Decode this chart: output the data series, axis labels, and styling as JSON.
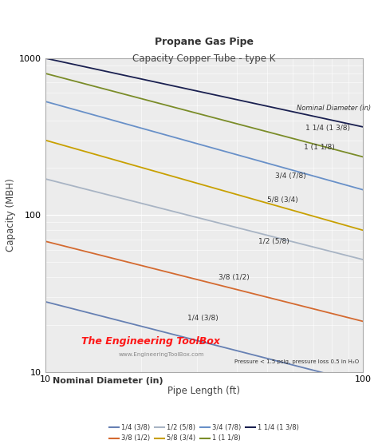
{
  "title": "Propane Gas Pipe",
  "subtitle": "Capacity Copper Tube - type K",
  "xlabel": "Pipe Length (ft)",
  "ylabel": "Capacity (MBH)",
  "xlabel2": "Nominal Diameter (in)",
  "xlim": [
    10,
    100
  ],
  "ylim": [
    10,
    1000
  ],
  "annotation": "Pressure < 1.5 psig, pressure loss 0.5 in H₂O",
  "watermark1": "The Engineering ToolBox",
  "watermark2": "www.EngineeringToolBox.com",
  "series": [
    {
      "label": "1/4 (3/8)",
      "color": "#6680b3",
      "x": [
        10,
        100
      ],
      "y": [
        28,
        8.5
      ]
    },
    {
      "label": "3/8 (1/2)",
      "color": "#d46a30",
      "x": [
        10,
        100
      ],
      "y": [
        68,
        21
      ]
    },
    {
      "label": "1/2 (5/8)",
      "color": "#a8b4c4",
      "x": [
        10,
        100
      ],
      "y": [
        170,
        52
      ]
    },
    {
      "label": "5/8 (3/4)",
      "color": "#c8a000",
      "x": [
        10,
        100
      ],
      "y": [
        300,
        80
      ]
    },
    {
      "label": "3/4 (7/8)",
      "color": "#6890c8",
      "x": [
        10,
        100
      ],
      "y": [
        530,
        145
      ]
    },
    {
      "label": "1 (1 1/8)",
      "color": "#7a8c28",
      "x": [
        10,
        100
      ],
      "y": [
        800,
        235
      ]
    },
    {
      "label": "1 1/4 (1 3/8)",
      "color": "#1a2050",
      "x": [
        10,
        100
      ],
      "y": [
        1000,
        365
      ]
    }
  ],
  "plot_bg_color": "#ececec",
  "fig_bg_color": "#ffffff",
  "grid_color": "#ffffff",
  "title_fontsize": 9,
  "subtitle_fontsize": 8.5,
  "tick_fontsize": 8,
  "label_fontsize": 8.5
}
